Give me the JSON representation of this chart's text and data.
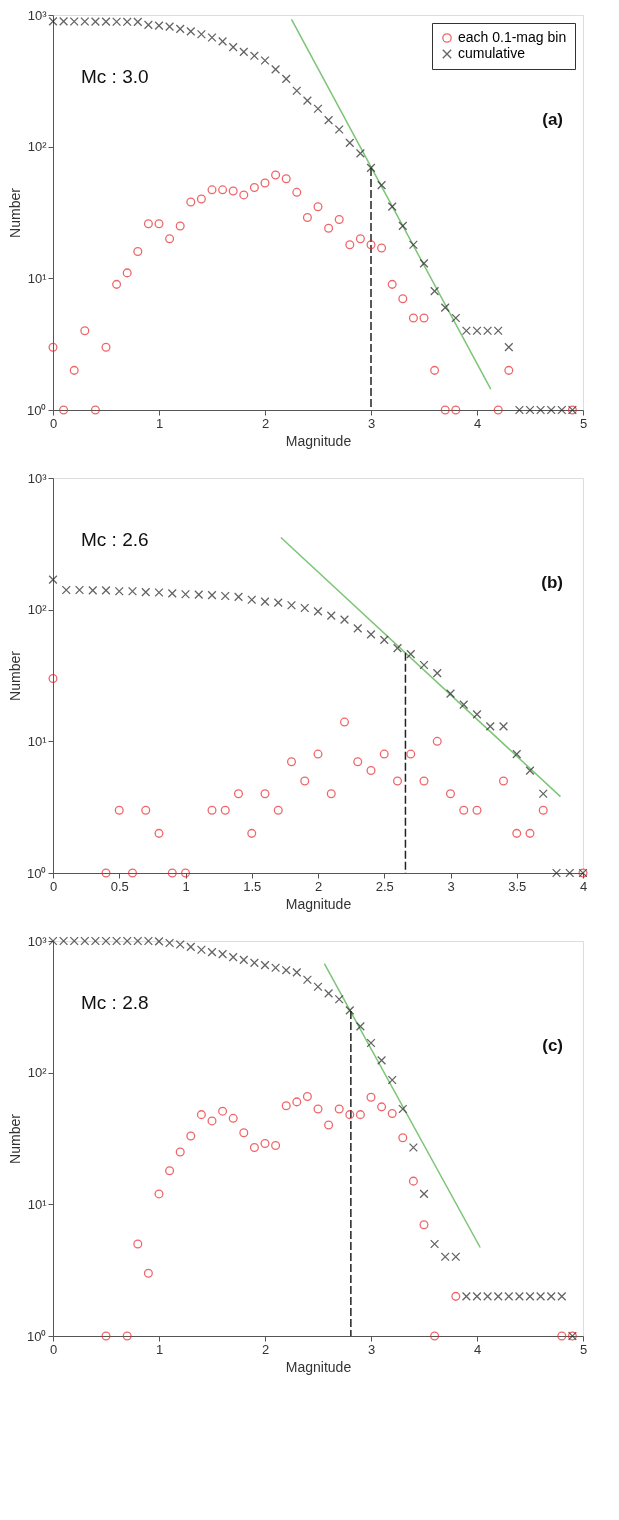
{
  "chart_data": [
    {
      "type": "scatter",
      "xlabel": "Magnitude",
      "ylabel": "Number",
      "log": "y",
      "grid": false,
      "legend": "top right",
      "xlim": [
        0,
        5
      ],
      "xticks": [
        0,
        1,
        2,
        3,
        4,
        5
      ],
      "ylim": [
        1,
        1000
      ],
      "yticks": [
        {
          "value": 1,
          "label": "10⁰"
        },
        {
          "value": 10,
          "label": "10¹"
        },
        {
          "value": 100,
          "label": "10²"
        },
        {
          "value": 1000,
          "label": "10³"
        }
      ],
      "annotations": [
        "Mc : 3.0",
        "(a)"
      ],
      "series": [
        {
          "name": "each 0.1-mag bin",
          "type": "scatter",
          "marker": "circle",
          "color": "#e8262a",
          "x": [
            0,
            0.1,
            0.2,
            0.3,
            0.4,
            0.5,
            0.6,
            0.7,
            0.8,
            0.9,
            1.0,
            1.1,
            1.2,
            1.3,
            1.4,
            1.5,
            1.6,
            1.7,
            1.8,
            1.9,
            2.0,
            2.1,
            2.2,
            2.3,
            2.4,
            2.5,
            2.6,
            2.7,
            2.8,
            2.9,
            3.0,
            3.1,
            3.2,
            3.3,
            3.4,
            3.5,
            3.6,
            3.7,
            3.8,
            4.2,
            4.3,
            4.9
          ],
          "values": [
            3,
            1,
            2,
            4,
            1,
            3,
            9,
            11,
            16,
            26,
            26,
            20,
            25,
            38,
            40,
            47,
            47,
            46,
            43,
            49,
            53,
            61,
            57,
            45,
            29,
            35,
            24,
            28,
            18,
            20,
            18,
            17,
            9,
            7,
            5,
            5,
            2,
            1,
            1,
            1,
            2,
            1
          ]
        },
        {
          "name": "cumulative",
          "type": "scatter",
          "marker": "cross",
          "color": "#222222",
          "x": [
            0,
            0.1,
            0.2,
            0.3,
            0.4,
            0.5,
            0.6,
            0.7,
            0.8,
            0.9,
            1.0,
            1.1,
            1.2,
            1.3,
            1.4,
            1.5,
            1.6,
            1.7,
            1.8,
            1.9,
            2.0,
            2.1,
            2.2,
            2.3,
            2.4,
            2.5,
            2.6,
            2.7,
            2.8,
            2.9,
            3.0,
            3.1,
            3.2,
            3.3,
            3.4,
            3.5,
            3.6,
            3.7,
            3.8,
            3.9,
            4.0,
            4.1,
            4.2,
            4.3,
            4.4,
            4.5,
            4.6,
            4.7,
            4.8,
            4.9
          ],
          "values": [
            895,
            894,
            893,
            892,
            891,
            890,
            889,
            888,
            887,
            841,
            830,
            816,
            785,
            751,
            714,
            675,
            630,
            571,
            525,
            490,
            451,
            386,
            327,
            266,
            224,
            194,
            159,
            135,
            107,
            89,
            69,
            51,
            35,
            25,
            18,
            13,
            8,
            6,
            5,
            4,
            4,
            4,
            4,
            3,
            1,
            1,
            1,
            1,
            1,
            1
          ]
        },
        {
          "type": "line",
          "line_style": "solid",
          "color": "#7cc576",
          "x": [
            2.25,
            4.13
          ],
          "values": [
            927,
            1.44
          ]
        },
        {
          "type": "line",
          "line_style": "dashed",
          "color": "#222222",
          "x": [
            3.0,
            3.0
          ],
          "values": [
            69,
            1
          ]
        }
      ]
    },
    {
      "type": "scatter",
      "xlabel": "Magnitude",
      "ylabel": "Number",
      "log": "y",
      "grid": false,
      "legend": "top right",
      "xlim": [
        0,
        4
      ],
      "xticks": [
        0,
        0.5,
        1,
        1.5,
        2,
        2.5,
        3,
        3.5,
        4
      ],
      "ylim": [
        1,
        1000
      ],
      "yticks": [
        {
          "value": 1,
          "label": "10⁰"
        },
        {
          "value": 10,
          "label": "10¹"
        },
        {
          "value": 100,
          "label": "10²"
        },
        {
          "value": 1000,
          "label": "10³"
        }
      ],
      "annotations": [
        "Mc : 2.6",
        "(b)"
      ],
      "series": [
        {
          "name": "each 0.1-mag bin",
          "type": "scatter",
          "marker": "circle",
          "color": "#e8262a",
          "x": [
            0,
            0.4,
            0.5,
            0.6,
            0.7,
            0.8,
            0.9,
            1.0,
            1.2,
            1.3,
            1.4,
            1.5,
            1.6,
            1.7,
            1.8,
            1.9,
            2.0,
            2.1,
            2.2,
            2.3,
            2.4,
            2.5,
            2.6,
            2.7,
            2.8,
            2.9,
            3.0,
            3.1,
            3.2,
            3.4,
            3.5,
            3.6,
            3.7,
            4.0
          ],
          "values": [
            30,
            1,
            3,
            1,
            3,
            2,
            1,
            1,
            3,
            3,
            4,
            2,
            4,
            3,
            7,
            5,
            8,
            4,
            14,
            7,
            6,
            8,
            5,
            8,
            5,
            10,
            4,
            3,
            3,
            5,
            2,
            2,
            3,
            1
          ]
        },
        {
          "name": "cumulative",
          "type": "scatter",
          "marker": "cross",
          "color": "#222222",
          "x": [
            0,
            0.1,
            0.2,
            0.3,
            0.4,
            0.5,
            0.6,
            0.7,
            0.8,
            0.9,
            1.0,
            1.1,
            1.2,
            1.3,
            1.4,
            1.5,
            1.6,
            1.7,
            1.8,
            1.9,
            2.0,
            2.1,
            2.2,
            2.3,
            2.4,
            2.5,
            2.6,
            2.7,
            2.8,
            2.9,
            3.0,
            3.1,
            3.2,
            3.3,
            3.4,
            3.5,
            3.6,
            3.7,
            3.8,
            3.9,
            4.0
          ],
          "values": [
            169,
            141,
            141,
            140,
            140,
            138,
            138,
            136,
            135,
            133,
            131,
            130,
            129,
            127,
            125,
            119,
            115,
            113,
            108,
            103,
            97,
            90,
            84,
            72,
            65,
            59,
            51,
            46,
            38,
            33,
            23,
            19,
            16,
            13,
            13,
            8,
            6,
            4,
            1,
            1,
            1
          ]
        },
        {
          "type": "line",
          "line_style": "solid",
          "color": "#7cc576",
          "x": [
            1.72,
            3.83
          ],
          "values": [
            353,
            3.8
          ]
        },
        {
          "type": "line",
          "line_style": "dashed",
          "color": "#222222",
          "x": [
            2.66,
            2.66
          ],
          "values": [
            47,
            1
          ]
        }
      ]
    },
    {
      "type": "scatter",
      "xlabel": "Magnitude",
      "ylabel": "Number",
      "log": "y",
      "grid": false,
      "legend": "top right",
      "xlim": [
        0,
        5
      ],
      "xticks": [
        0,
        1,
        2,
        3,
        4,
        5
      ],
      "ylim": [
        1,
        1000
      ],
      "yticks": [
        {
          "value": 1,
          "label": "10⁰"
        },
        {
          "value": 10,
          "label": "10¹"
        },
        {
          "value": 100,
          "label": "10²"
        },
        {
          "value": 1000,
          "label": "10³"
        }
      ],
      "annotations": [
        "Mc : 2.8",
        "(c)"
      ],
      "series": [
        {
          "name": "each 0.1-mag bin",
          "type": "scatter",
          "marker": "circle",
          "color": "#e8262a",
          "x": [
            0.5,
            0.7,
            0.8,
            0.9,
            1.0,
            1.1,
            1.2,
            1.3,
            1.4,
            1.5,
            1.6,
            1.7,
            1.8,
            1.9,
            2.0,
            2.1,
            2.2,
            2.3,
            2.4,
            2.5,
            2.6,
            2.7,
            2.8,
            2.9,
            3.0,
            3.1,
            3.2,
            3.3,
            3.4,
            3.5,
            3.6,
            3.8,
            4.8,
            4.9
          ],
          "values": [
            1,
            1,
            5,
            3,
            12,
            18,
            25,
            33,
            48,
            43,
            51,
            45,
            35,
            27,
            29,
            28,
            56,
            60,
            66,
            53,
            40,
            53,
            48,
            48,
            65,
            55,
            49,
            32,
            15,
            7,
            1,
            2,
            1,
            1
          ]
        },
        {
          "name": "cumulative",
          "type": "scatter",
          "marker": "cross",
          "color": "#222222",
          "x": [
            0,
            0.1,
            0.2,
            0.3,
            0.4,
            0.5,
            0.6,
            0.7,
            0.8,
            0.9,
            1.0,
            1.1,
            1.2,
            1.3,
            1.4,
            1.5,
            1.6,
            1.7,
            1.8,
            1.9,
            2.0,
            2.1,
            2.2,
            2.3,
            2.4,
            2.5,
            2.6,
            2.7,
            2.8,
            2.9,
            3.0,
            3.1,
            3.2,
            3.3,
            3.4,
            3.5,
            3.6,
            3.7,
            3.8,
            3.9,
            4.0,
            4.1,
            4.2,
            4.3,
            4.4,
            4.5,
            4.6,
            4.7,
            4.8,
            4.9
          ],
          "values": [
            1000,
            1000,
            1000,
            1000,
            1000,
            1000,
            1000,
            1000,
            1000,
            1000,
            993,
            965,
            941,
            903,
            858,
            824,
            795,
            755,
            718,
            683,
            655,
            626,
            600,
            577,
            508,
            449,
            400,
            361,
            297,
            225,
            168,
            124,
            88,
            53,
            27,
            12,
            5,
            4,
            4,
            2,
            2,
            2,
            2,
            2,
            2,
            2,
            2,
            2,
            2,
            1
          ]
        },
        {
          "type": "line",
          "line_style": "solid",
          "color": "#7cc576",
          "x": [
            2.56,
            4.03
          ],
          "values": [
            672,
            4.7
          ]
        },
        {
          "type": "line",
          "line_style": "dashed",
          "color": "#222222",
          "x": [
            2.81,
            2.81
          ],
          "values": [
            294,
            1
          ]
        }
      ]
    }
  ]
}
